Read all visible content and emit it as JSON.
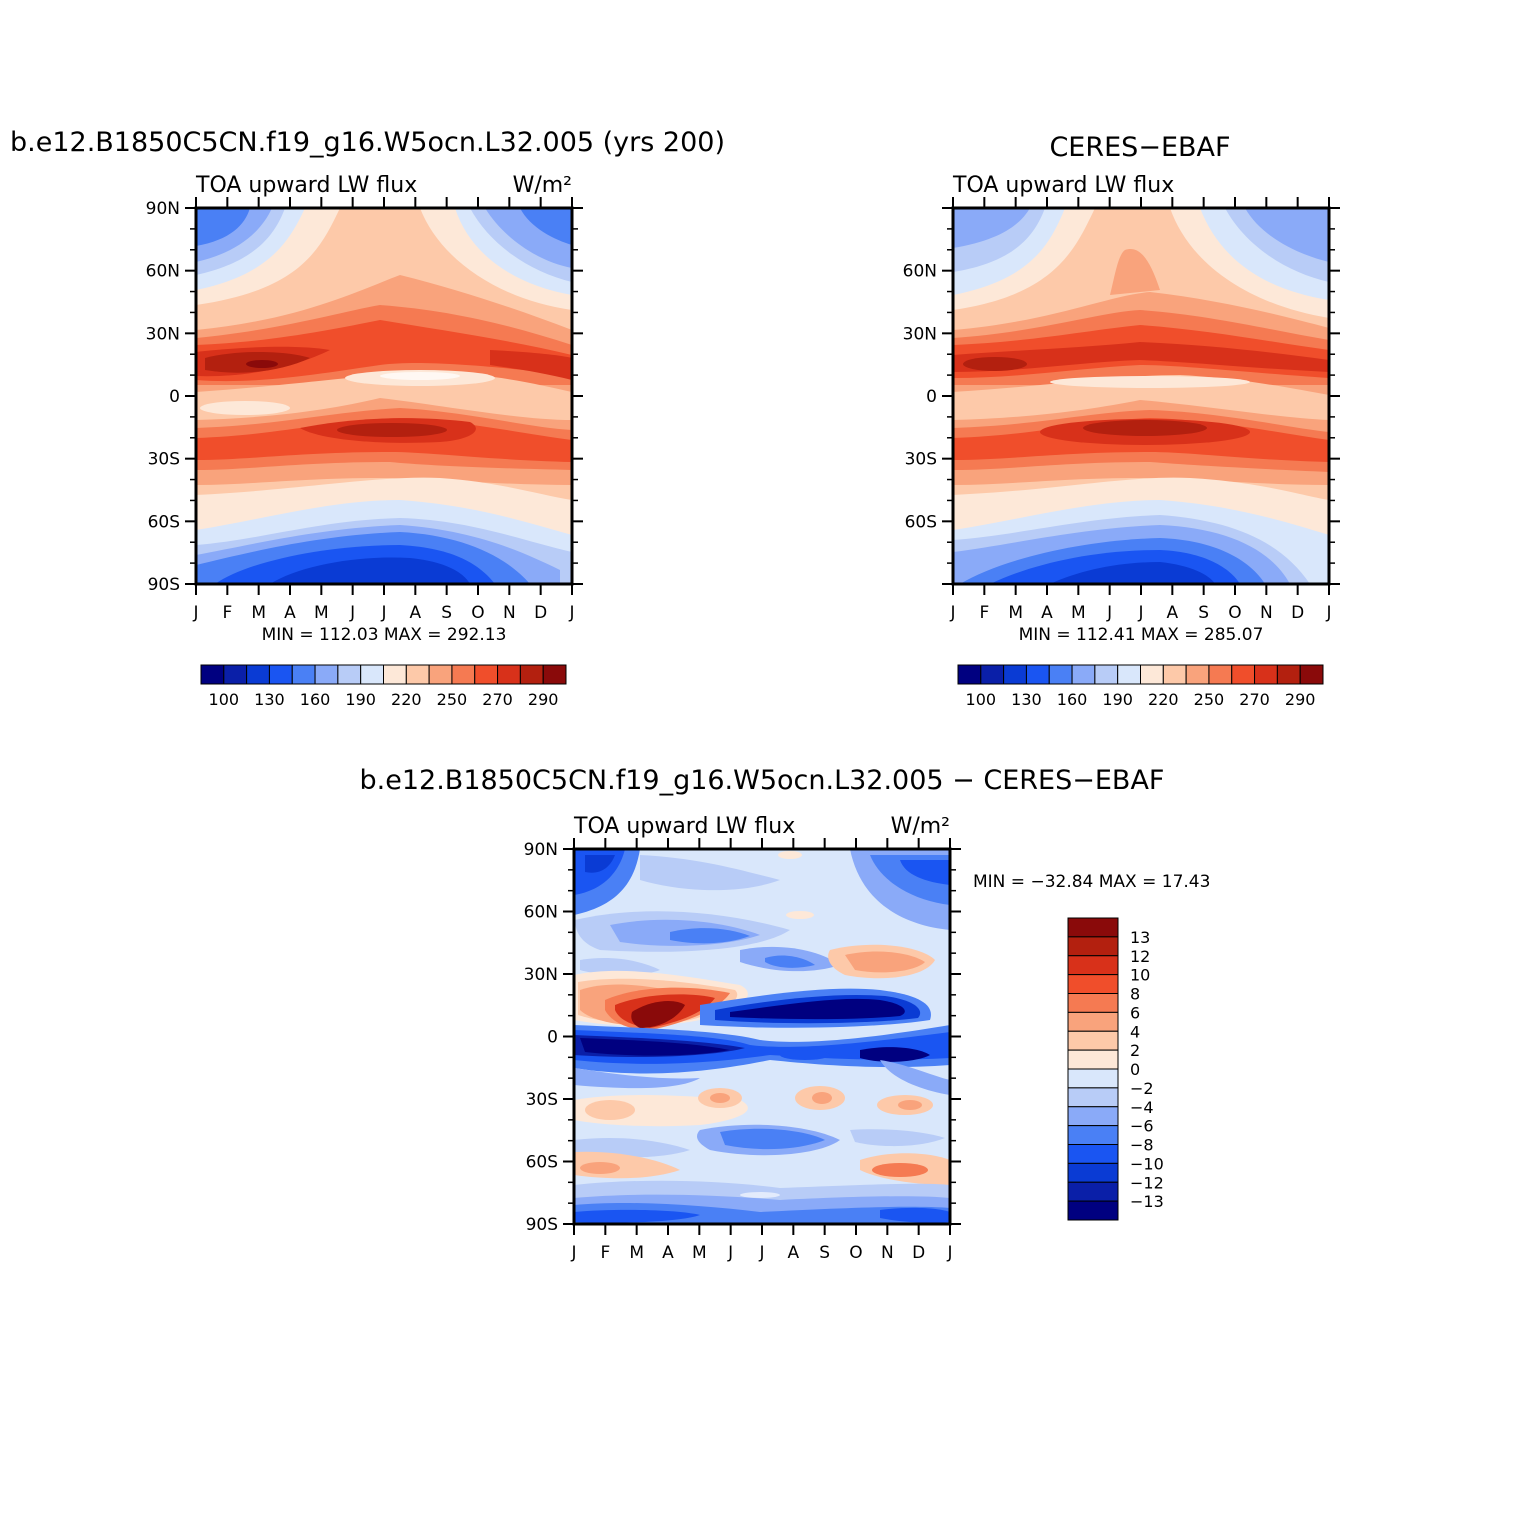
{
  "colors": {
    "palette": [
      "#000080",
      "#0a1fa8",
      "#0a3bd4",
      "#1a55f2",
      "#4a80f5",
      "#8aaaf8",
      "#b8ccf7",
      "#d9e7fb",
      "#fde8d8",
      "#fdc9a9",
      "#f9a37c",
      "#f57a52",
      "#f04e2b",
      "#d8311a",
      "#b3200f",
      "#8a0a0a"
    ]
  },
  "panels": [
    {
      "id": "model",
      "title": "b.e12.B1850C5CN.f19_g16.W5ocn.L32.005 (yrs 200)",
      "left_label": "TOA upward LW flux",
      "units": "W/m²",
      "y_ticks": [
        "90N",
        "60N",
        "30N",
        "0",
        "30S",
        "60S",
        "90S"
      ],
      "x_ticks": [
        "J",
        "F",
        "M",
        "A",
        "M",
        "J",
        "J",
        "A",
        "S",
        "O",
        "N",
        "D",
        "J"
      ],
      "stats": "MIN =  112.03  MAX =  292.13",
      "colorbar_labels": [
        "100",
        "130",
        "160",
        "190",
        "220",
        "250",
        "270",
        "290"
      ]
    },
    {
      "id": "obs",
      "title": "CERES−EBAF",
      "left_label": "TOA upward LW flux",
      "units": "",
      "y_ticks": [
        "",
        "60N",
        "30N",
        "0",
        "30S",
        "60S",
        ""
      ],
      "x_ticks": [
        "J",
        "F",
        "M",
        "A",
        "M",
        "J",
        "J",
        "A",
        "S",
        "O",
        "N",
        "D",
        "J"
      ],
      "stats": "MIN =  112.41  MAX =  285.07",
      "colorbar_labels": [
        "100",
        "130",
        "160",
        "190",
        "220",
        "250",
        "270",
        "290"
      ]
    },
    {
      "id": "diff",
      "title": "b.e12.B1850C5CN.f19_g16.W5ocn.L32.005  −  CERES−EBAF",
      "left_label": "TOA upward LW flux",
      "units": "W/m²",
      "y_ticks": [
        "90N",
        "60N",
        "30N",
        "0",
        "30S",
        "60S",
        "90S"
      ],
      "x_ticks": [
        "J",
        "F",
        "M",
        "A",
        "M",
        "J",
        "J",
        "A",
        "S",
        "O",
        "N",
        "D",
        "J"
      ],
      "stats": "MIN = −32.84  MAX =   17.43",
      "colorbar_labels": [
        "13",
        "12",
        "10",
        "8",
        "6",
        "4",
        "2",
        "0",
        "−2",
        "−4",
        "−6",
        "−8",
        "−10",
        "−12",
        "−13"
      ]
    }
  ],
  "chart_data": [
    {
      "type": "heatmap",
      "title": "b.e12.B1850C5CN.f19_g16.W5ocn.L32.005 (yrs 200)",
      "variable": "TOA upward LW flux",
      "units": "W/m²",
      "x": [
        "J",
        "F",
        "M",
        "A",
        "M",
        "J",
        "J",
        "A",
        "S",
        "O",
        "N",
        "D",
        "J"
      ],
      "ylim": [
        -90,
        90
      ],
      "min": 112.03,
      "max": 292.13,
      "levels": [
        100,
        110,
        130,
        145,
        160,
        175,
        190,
        205,
        220,
        235,
        250,
        260,
        270,
        280,
        290
      ],
      "field": "zonal-mean annual cycle: ~285 W/m² near 15N and 20S, ~225 W/m² near equator, ~180 W/m² at 90N, ~115 W/m² at 90S in austral winter",
      "max_approx": [
        {
          "month": 2.2,
          "lat": 15,
          "value": 292
        }
      ]
    },
    {
      "type": "heatmap",
      "title": "CERES−EBAF",
      "variable": "TOA upward LW flux",
      "units": "W/m²",
      "x": [
        "J",
        "F",
        "M",
        "A",
        "M",
        "J",
        "J",
        "A",
        "S",
        "O",
        "N",
        "D",
        "J"
      ],
      "ylim": [
        -90,
        90
      ],
      "min": 112.41,
      "max": 285.07,
      "levels": [
        100,
        110,
        130,
        145,
        160,
        175,
        190,
        205,
        220,
        235,
        250,
        260,
        270,
        280,
        290
      ]
    },
    {
      "type": "heatmap",
      "title": "b.e12.B1850C5CN.f19_g16.W5ocn.L32.005 − CERES−EBAF",
      "variable": "TOA upward LW flux",
      "units": "W/m²",
      "x": [
        "J",
        "F",
        "M",
        "A",
        "M",
        "J",
        "J",
        "A",
        "S",
        "O",
        "N",
        "D",
        "J"
      ],
      "ylim": [
        -90,
        90
      ],
      "min": -32.84,
      "max": 17.43,
      "levels": [
        -13,
        -12,
        -10,
        -8,
        -6,
        -4,
        -2,
        0,
        2,
        4,
        6,
        8,
        10,
        12,
        13
      ]
    }
  ]
}
